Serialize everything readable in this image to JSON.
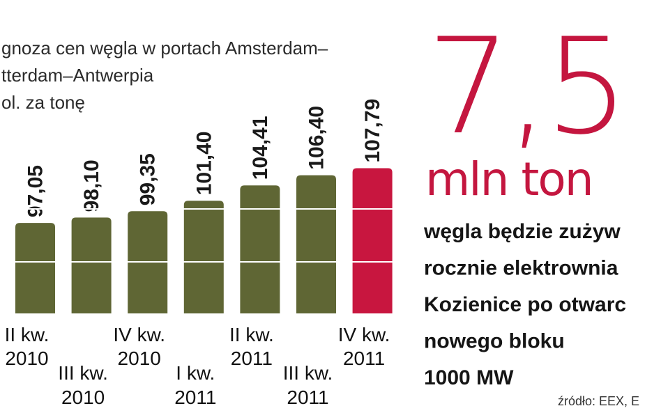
{
  "chart_data": {
    "type": "bar",
    "title_lines": [
      "gnoza cen węgla w portach Amsterdam–",
      "tterdam–Antwerpia",
      "ol. za tonę"
    ],
    "categories": [
      [
        "II kw.",
        "2010"
      ],
      [
        "III kw.",
        "2010"
      ],
      [
        "IV kw.",
        "2010"
      ],
      [
        "I kw.",
        "2011"
      ],
      [
        "II kw.",
        "2011"
      ],
      [
        "III kw.",
        "2011"
      ],
      [
        "IV kw.",
        "2011"
      ]
    ],
    "values": [
      97.05,
      98.1,
      99.35,
      101.4,
      104.41,
      106.4,
      107.79
    ],
    "value_labels": [
      "97,05",
      "98,10",
      "99,35",
      "101,40",
      "104,41",
      "106,40",
      "107,79"
    ],
    "colors": [
      "#5f6634",
      "#5f6634",
      "#5f6634",
      "#5f6634",
      "#5f6634",
      "#5f6634",
      "#c8163f"
    ],
    "label_colors": [
      "#1a1a1a",
      "#1a1a1a",
      "#1a1a1a",
      "#1a1a1a",
      "#1a1a1a",
      "#1a1a1a",
      "#c8163f"
    ],
    "ylim": [
      79.3,
      111
    ]
  },
  "callout": {
    "value": "7,5",
    "unit": "mln ton",
    "lines": [
      "węgla będzie zużyw",
      "rocznie elektrownia",
      "Kozienice po otwarc",
      "nowego bloku",
      "1000 MW"
    ]
  },
  "source": "źródło: EEX, E"
}
